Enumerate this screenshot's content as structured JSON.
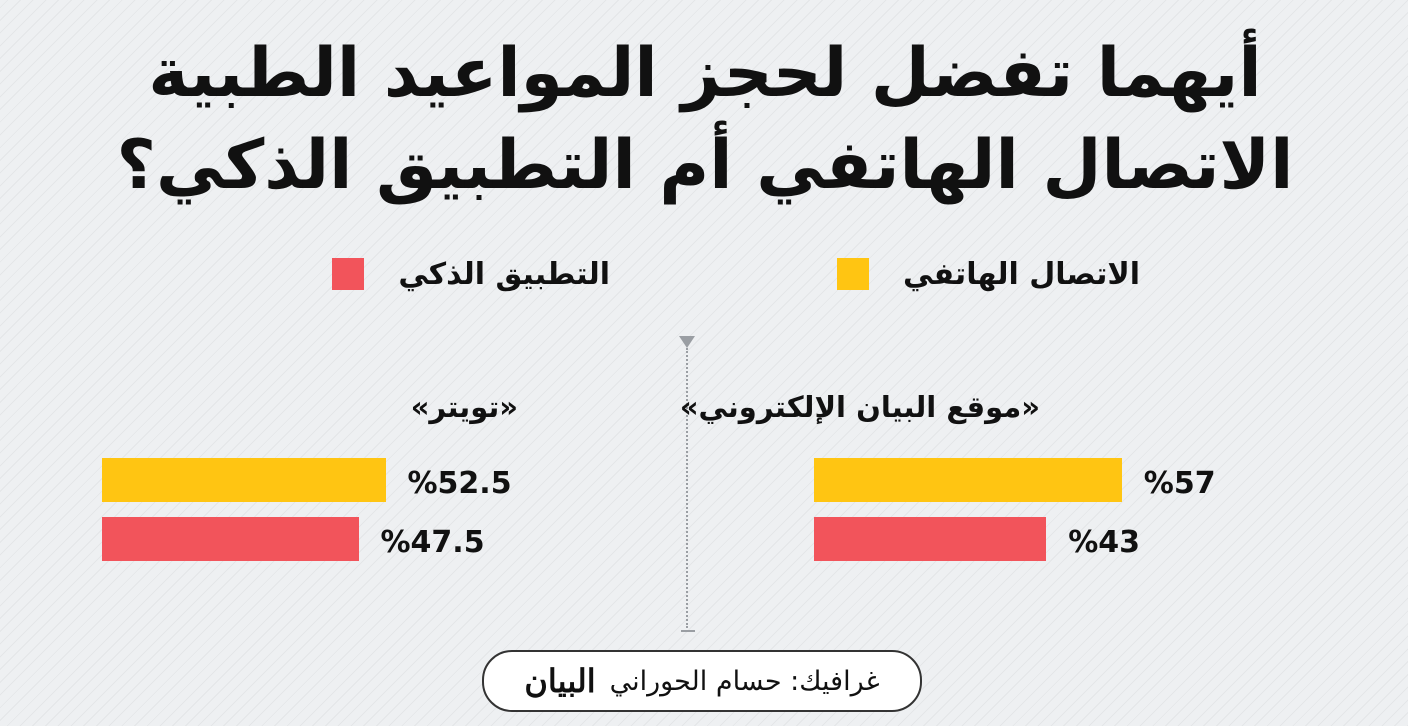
{
  "header": {
    "title_line1": "أيهما تفضل لحجز المواعيد الطبية",
    "title_line2": "الاتصال الهاتفي أم التطبيق الذكي؟"
  },
  "legend": [
    {
      "label": "الاتصال الهاتفي",
      "color": "#FFC512"
    },
    {
      "label": "التطبيق الذكي",
      "color": "#F2545B"
    }
  ],
  "chart_data": {
    "type": "bar",
    "orientation": "horizontal",
    "value_unit": "%",
    "series": [
      {
        "name": "الاتصال الهاتفي",
        "color": "#FFC512"
      },
      {
        "name": "التطبيق الذكي",
        "color": "#F2545B"
      }
    ],
    "panels": [
      {
        "title": "«موقع البيان الإلكتروني»",
        "values": [
          57,
          43
        ],
        "labels": [
          "%57",
          "%43"
        ]
      },
      {
        "title": "«تويتر»",
        "values": [
          52.5,
          47.5
        ],
        "labels": [
          "%52.5",
          "%47.5"
        ]
      }
    ]
  },
  "footer": {
    "credit": "غرافيك: حسام الحوراني",
    "logo": "البيان"
  }
}
